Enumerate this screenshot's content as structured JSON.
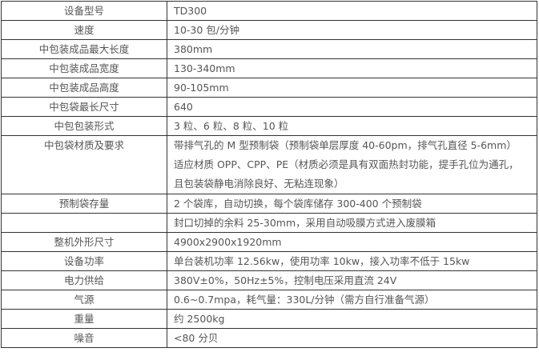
{
  "rows": [
    {
      "label": "设备型号",
      "value": "TD300"
    },
    {
      "label": "速度",
      "value": "10-30 包/分钟"
    },
    {
      "label": "中包装成品最大长度",
      "value": "380mm"
    },
    {
      "label": "中包装成品宽度",
      "value": "130-340mm"
    },
    {
      "label": "中包装成品高度",
      "value": "90-105mm"
    },
    {
      "label": "中包袋最长尺寸",
      "value": "640"
    },
    {
      "label": "中包包装形式",
      "value": "3 粒、6 粒、8 粒、10 粒"
    },
    {
      "label": "中包袋材质及要求",
      "lines": [
        "带排气孔的 M 型预制袋（预制袋单层厚度 40-60pm，排气孔直径 5-6mm）",
        "适应材质 OPP、CPP、PE（材质必须是具有双面热封功能，提手孔位为通孔，",
        "且包装袋静电消除良好、无粘连现象）"
      ]
    },
    {
      "label": "预制袋存量",
      "value": "2 个袋库，自动切换，每个袋库储存 300-400 个预制袋"
    },
    {
      "label": "",
      "value": "封口切掉的余料 25-30mm，采用自动吸膜方式进入废膜箱"
    },
    {
      "label": "整机外形尺寸",
      "value": "4900x2900x1920mm"
    },
    {
      "label": "设备功率",
      "value": "单台装机功率 12.56kw，使用功率 10kw，接入功率不低于 15kw"
    },
    {
      "label": "电力供给",
      "value": "380V±0%，50Hz±5%，控制电压采用直流 24V"
    },
    {
      "label": "气源",
      "value": "0.6~0.7mpa，耗气量：330L/分钟（需方自行准备气源）"
    },
    {
      "label": "重量",
      "value": "约 2500kg"
    },
    {
      "label": "噪音",
      "value": "<80 分贝"
    }
  ]
}
